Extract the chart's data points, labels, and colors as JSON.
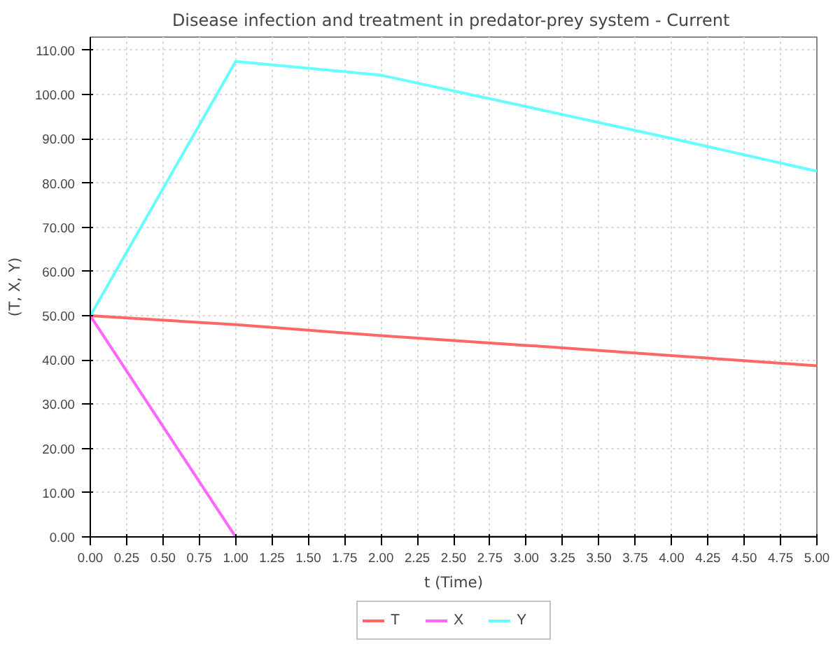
{
  "chart_data": {
    "type": "line",
    "title": "Disease infection and treatment  in predator-prey system - Current",
    "xlabel": "t (Time)",
    "ylabel": "(T, X, Y)",
    "x": [
      0,
      1,
      2,
      3,
      4,
      5
    ],
    "series": [
      {
        "name": "T",
        "color": "#ff6666",
        "values": [
          50,
          48,
          45.5,
          43.3,
          41,
          38.7
        ]
      },
      {
        "name": "X",
        "color": "#ff66ff",
        "values": [
          50,
          0,
          0,
          0,
          0,
          0
        ]
      },
      {
        "name": "Y",
        "color": "#66ffff",
        "values": [
          50,
          107.5,
          104.4,
          97.3,
          90.1,
          82.7
        ]
      }
    ],
    "xlim": [
      0,
      5
    ],
    "ylim": [
      0,
      113
    ],
    "xticks": [
      {
        "value": 0,
        "label": "0.00"
      },
      {
        "value": 0.25,
        "label": "0.25"
      },
      {
        "value": 0.5,
        "label": "0.50"
      },
      {
        "value": 0.75,
        "label": "0.75"
      },
      {
        "value": 1,
        "label": "1.00"
      },
      {
        "value": 1.25,
        "label": "1.25"
      },
      {
        "value": 1.5,
        "label": "1.50"
      },
      {
        "value": 1.75,
        "label": "1.75"
      },
      {
        "value": 2,
        "label": "2.00"
      },
      {
        "value": 2.25,
        "label": "2.25"
      },
      {
        "value": 2.5,
        "label": "2.50"
      },
      {
        "value": 2.75,
        "label": "2.75"
      },
      {
        "value": 3,
        "label": "3.00"
      },
      {
        "value": 3.25,
        "label": "3.25"
      },
      {
        "value": 3.5,
        "label": "3.50"
      },
      {
        "value": 3.75,
        "label": "3.75"
      },
      {
        "value": 4,
        "label": "4.00"
      },
      {
        "value": 4.25,
        "label": "4.25"
      },
      {
        "value": 4.5,
        "label": "4.50"
      },
      {
        "value": 4.75,
        "label": "4.75"
      },
      {
        "value": 5,
        "label": "5.00"
      }
    ],
    "yticks": [
      {
        "value": 0,
        "label": "0.00"
      },
      {
        "value": 10,
        "label": "10.00"
      },
      {
        "value": 20,
        "label": "20.00"
      },
      {
        "value": 30,
        "label": "30.00"
      },
      {
        "value": 40,
        "label": "40.00"
      },
      {
        "value": 50,
        "label": "50.00"
      },
      {
        "value": 60,
        "label": "60.00"
      },
      {
        "value": 70,
        "label": "70.00"
      },
      {
        "value": 80,
        "label": "80.00"
      },
      {
        "value": 90,
        "label": "90.00"
      },
      {
        "value": 100,
        "label": "100.00"
      },
      {
        "value": 110,
        "label": "110.00"
      }
    ],
    "grid": true,
    "legend": "bottom",
    "marker": "none",
    "line_style": "solid"
  }
}
